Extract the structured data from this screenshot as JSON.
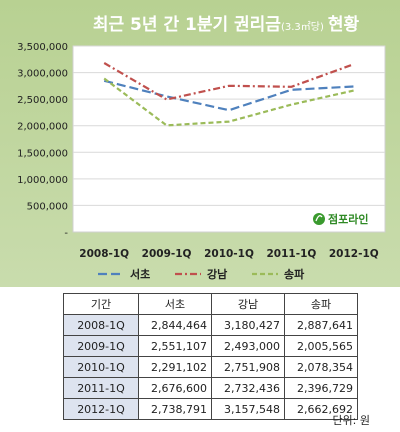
{
  "chart_data": {
    "type": "line",
    "title": "최근 5년 간 1분기 권리금",
    "title_unit": "(3.3㎡당)",
    "title_suffix": "현황",
    "categories": [
      "2008-1Q",
      "2009-1Q",
      "2010-1Q",
      "2011-1Q",
      "2012-1Q"
    ],
    "yticks": [
      "3,500,000",
      "3,000,000",
      "2,500,000",
      "2,000,000",
      "1,500,000",
      "1,000,000",
      "500,000",
      "-"
    ],
    "ylim": [
      0,
      3500000
    ],
    "grid": true,
    "legend_position": "bottom",
    "series": [
      {
        "name": "서초",
        "color": "#4f81bd",
        "dash": "long-dash",
        "values": [
          2844464,
          2551107,
          2291102,
          2676600,
          2738791
        ]
      },
      {
        "name": "강남",
        "color": "#c0504d",
        "dash": "dash-dot",
        "values": [
          3180427,
          2493000,
          2751908,
          2732436,
          3157548
        ]
      },
      {
        "name": "송파",
        "color": "#9bbb59",
        "dash": "dash",
        "values": [
          2887641,
          2005565,
          2078354,
          2396729,
          2662692
        ]
      }
    ]
  },
  "logo_text": "점포라인",
  "colors": {
    "panel_bg": "#bcd39a",
    "plot_bg": "#ffffff",
    "title_text": "#ffffff",
    "logo_green": "#3a9a2e"
  },
  "table": {
    "headers": [
      "기간",
      "서초",
      "강남",
      "송파"
    ],
    "rows": [
      [
        "2008-1Q",
        "2,844,464",
        "3,180,427",
        "2,887,641"
      ],
      [
        "2009-1Q",
        "2,551,107",
        "2,493,000",
        "2,005,565"
      ],
      [
        "2010-1Q",
        "2,291,102",
        "2,751,908",
        "2,078,354"
      ],
      [
        "2011-1Q",
        "2,676,600",
        "2,732,436",
        "2,396,729"
      ],
      [
        "2012-1Q",
        "2,738,791",
        "3,157,548",
        "2,662,692"
      ]
    ]
  },
  "unit_note": "단위: 원"
}
